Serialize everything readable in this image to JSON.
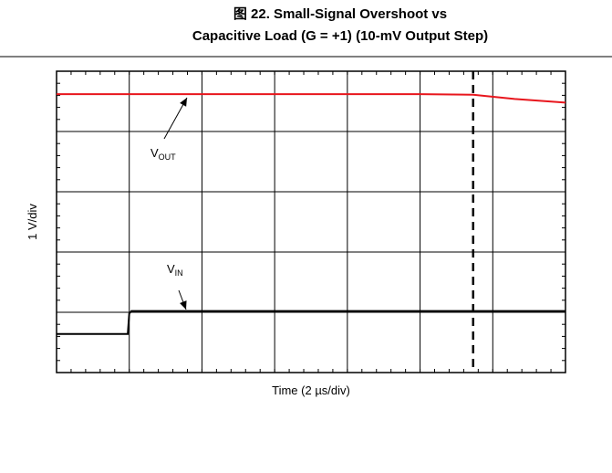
{
  "chart_data": {
    "type": "line",
    "title": [
      "图 22. Small-Signal Overshoot vs",
      "Capacitive Load (G = +1) (10-mV Output Step)"
    ],
    "xlabel": "Time (2 µs/div)",
    "ylabel": "1 V/div",
    "xlim": [
      0,
      7
    ],
    "ylim": [
      0,
      5
    ],
    "xticks": [
      0,
      1,
      2,
      3,
      4,
      5,
      6,
      7
    ],
    "yticks": [
      0,
      1,
      2,
      3,
      4,
      5
    ],
    "grid": true,
    "marker_x": 5.73,
    "series": [
      {
        "label": {
          "text": "V",
          "subscript": "OUT"
        },
        "color": "#e8161d",
        "x": [
          0,
          1,
          2,
          3,
          4,
          5,
          5.73,
          6.3,
          7
        ],
        "values": [
          4.62,
          4.62,
          4.62,
          4.62,
          4.62,
          4.62,
          4.61,
          4.54,
          4.48
        ]
      },
      {
        "label": {
          "text": "V",
          "subscript": "IN"
        },
        "color": "#000000",
        "x": [
          0,
          0.98,
          1.0,
          1.03,
          7
        ],
        "values": [
          0.64,
          0.64,
          0.98,
          1.02,
          1.02
        ]
      }
    ]
  }
}
